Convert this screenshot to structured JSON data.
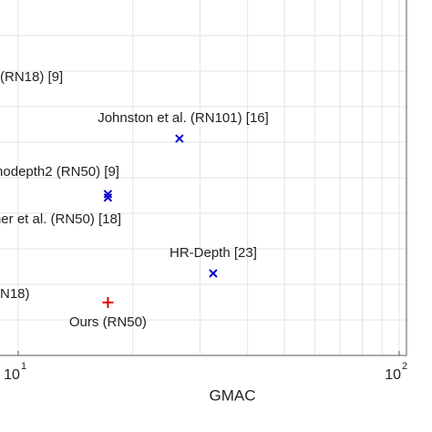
{
  "chart_data": {
    "type": "scatter",
    "x_label": "GMAC",
    "xscale": "log",
    "xlim": [
      8.96,
      104.5
    ],
    "ylim": [
      0,
      1
    ],
    "xticks": [
      {
        "value": 10,
        "label": "10",
        "exponent": "1"
      },
      {
        "value": 100,
        "label": "10",
        "exponent": "2"
      }
    ],
    "xminor": [
      20,
      30,
      40,
      50,
      60,
      70,
      80,
      90
    ],
    "grid": true,
    "points": [
      {
        "name": "Johnston et al. (RN101) [16]",
        "x": 26.5,
        "y": 0.61,
        "color": "#0000cc",
        "marker": "x"
      },
      {
        "name": "nodepth2 (RN50) [9]",
        "x": 17.2,
        "y": 0.454,
        "color": "#0000cc",
        "marker": "x"
      },
      {
        "name": "ner et al. (RN50) [18]",
        "x": 17.2,
        "y": 0.444,
        "color": "#0000cc",
        "marker": "x"
      },
      {
        "name": "HR-Depth [23]",
        "x": 32.5,
        "y": 0.231,
        "color": "#0000cc",
        "marker": "x"
      },
      {
        "name": "Ours (RN50)",
        "x": 17.2,
        "y": 0.149,
        "color": "#e00000",
        "marker": "+"
      }
    ],
    "annotations": [
      "(RN18) [9]",
      "N18)"
    ]
  }
}
